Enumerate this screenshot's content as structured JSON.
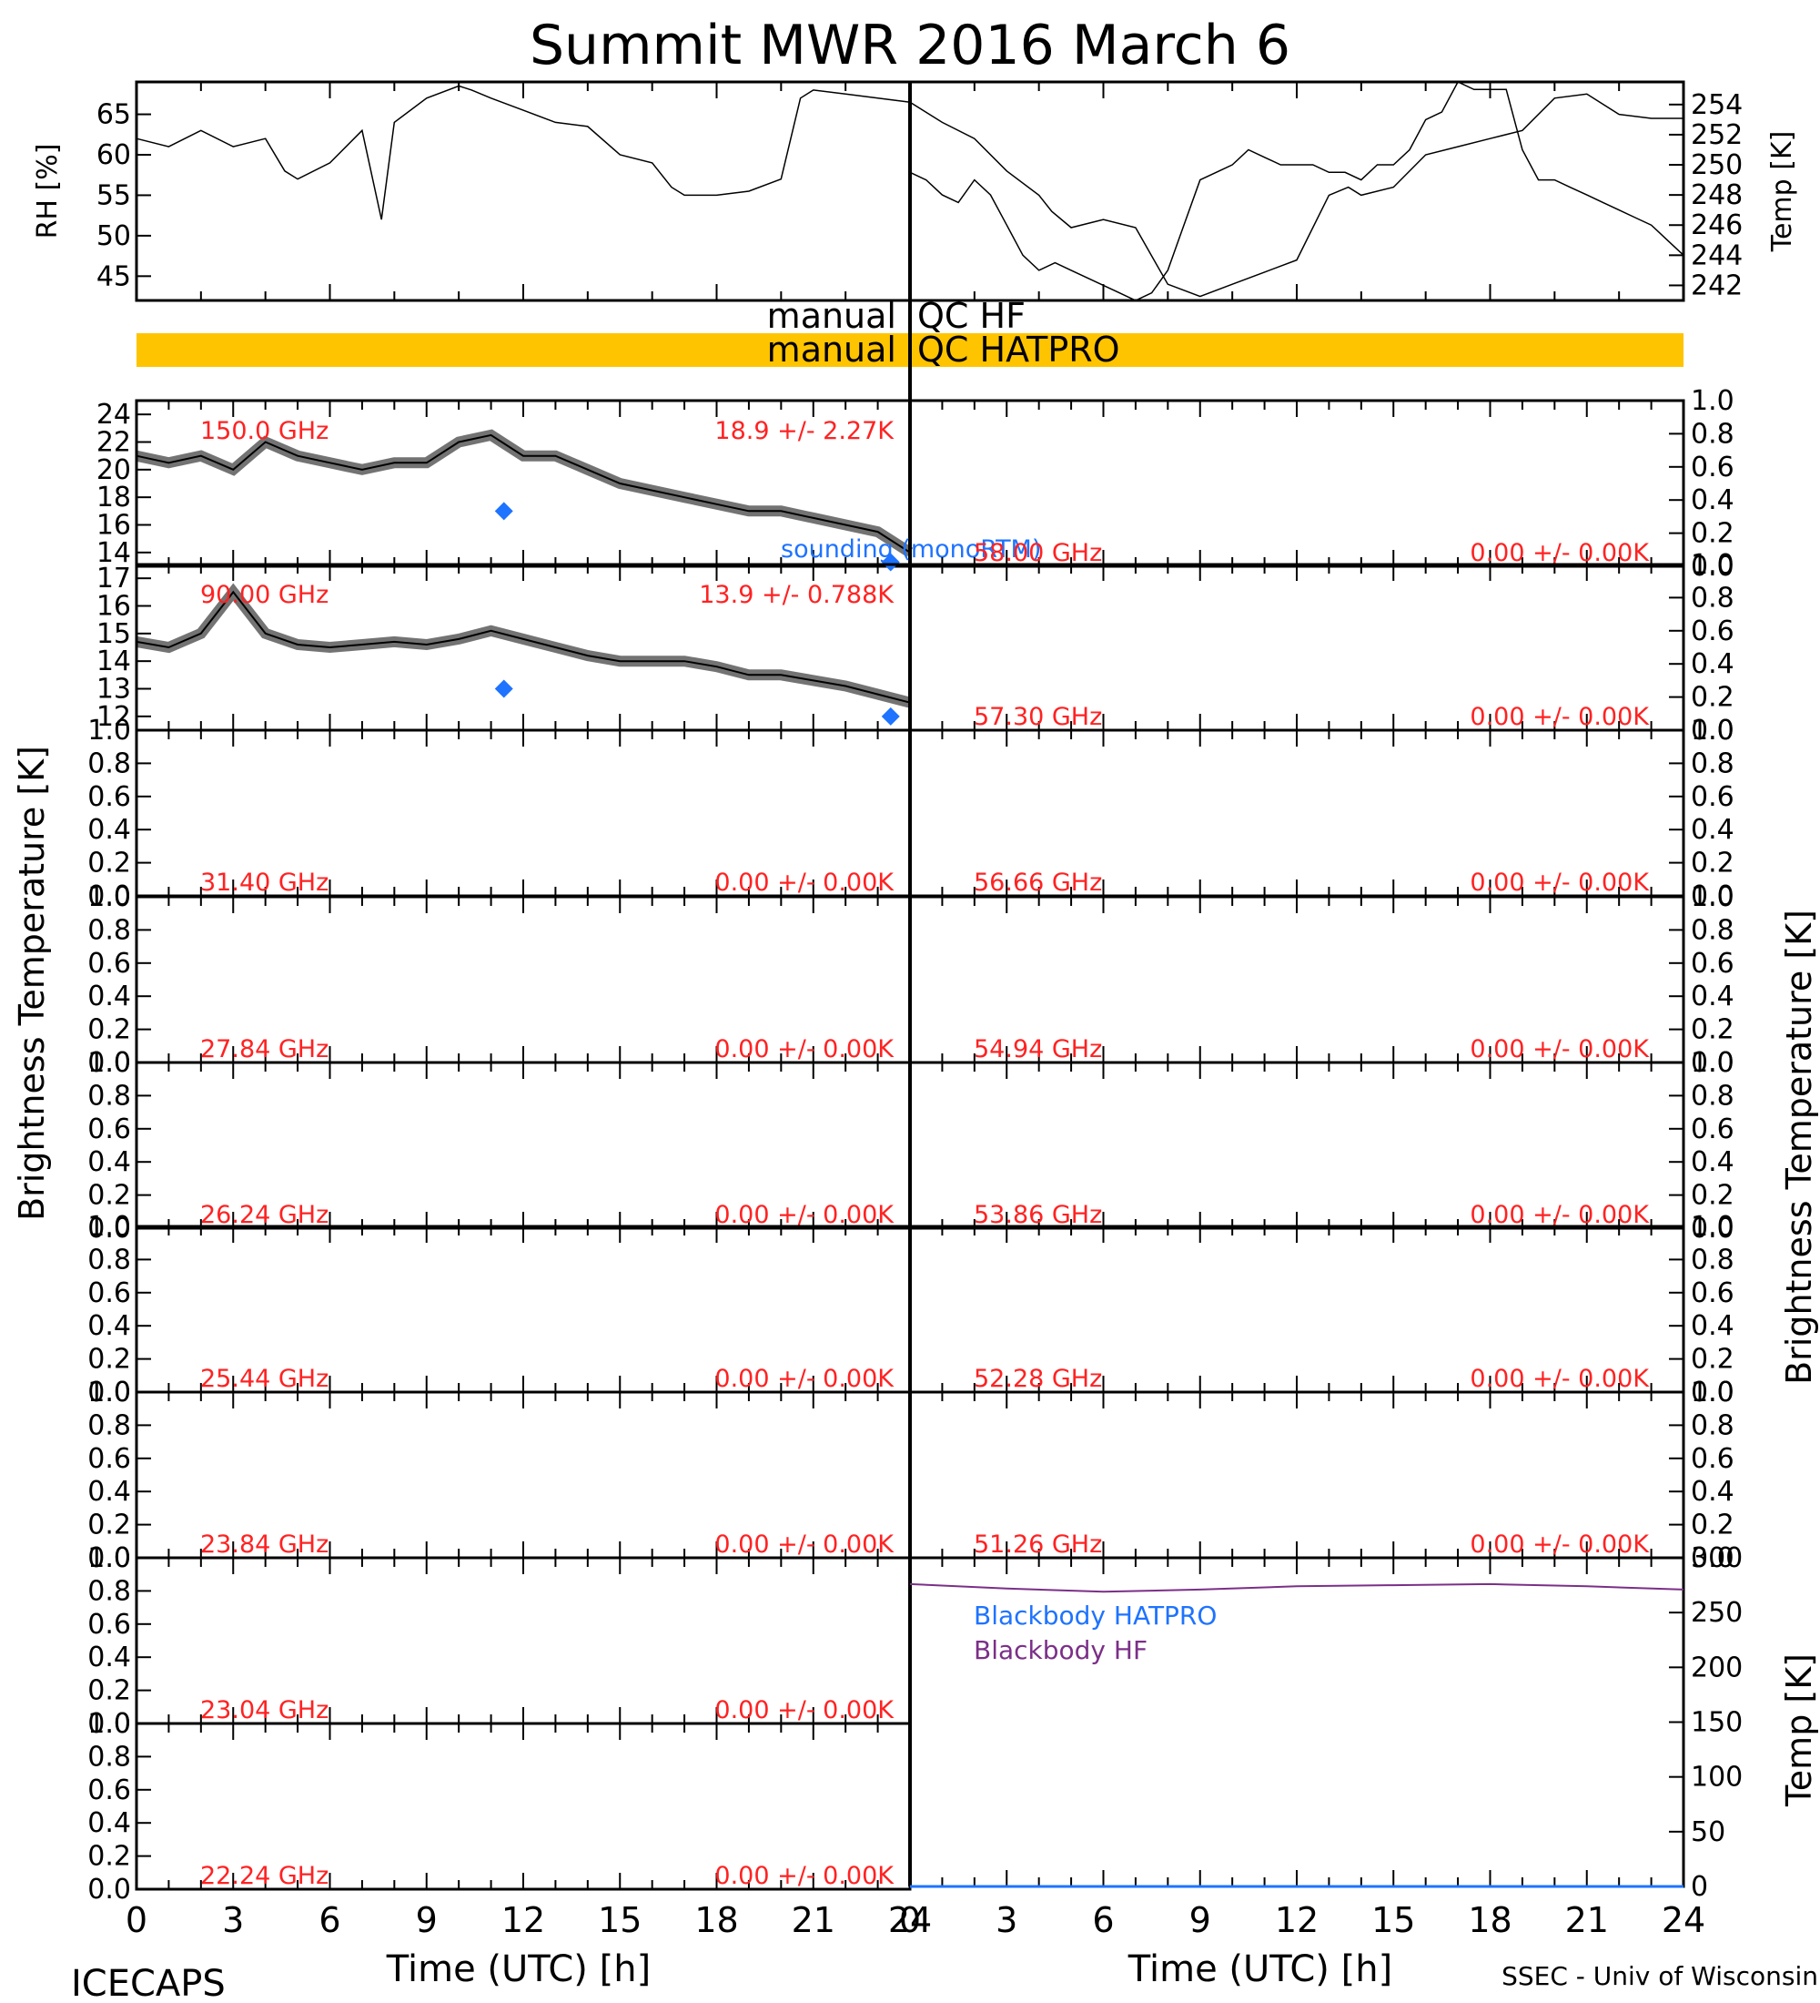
{
  "title": "Summit MWR 2016 March   6",
  "footer": {
    "left": "ICECAPS",
    "right": "SSEC - Univ of Wisconsin",
    "x_title_left": "Time (UTC) [h]",
    "x_title_right": "Time (UTC) [h]"
  },
  "y_titles": {
    "left_big": "Brightness Temperature [K]",
    "right_big": "Brightness Temperature [K]"
  },
  "qc_bars": {
    "hf": {
      "left": "manual",
      "right": "QC HF"
    },
    "hatpro": {
      "left": "manual",
      "right": "QC HATPRO"
    },
    "color": "#ffc400"
  },
  "colors": {
    "data": "#000000",
    "stats_text": "#ff2222",
    "sounding": "#1e73ff",
    "blackbody_hatpro": "#1e73ff",
    "blackbody_hf": "#7b2f88"
  },
  "x_ticks": [
    "0",
    "3",
    "6",
    "9",
    "12",
    "15",
    "18",
    "21",
    "24"
  ],
  "chart_data": [
    {
      "type": "line",
      "ylabel": "RH [%]",
      "xlim": [
        0,
        24
      ],
      "ylim": [
        42,
        69
      ],
      "yticks": [
        "45",
        "50",
        "55",
        "60",
        "65"
      ],
      "series": [
        {
          "x": [
            0,
            0.5,
            1,
            1.5,
            2,
            2.3,
            2.5,
            3,
            3.5,
            3.8,
            4,
            4.5,
            5,
            5.2,
            5.5,
            6,
            6.5,
            7,
            7.5,
            8,
            8.3,
            8.5,
            9,
            9.5,
            10,
            10.3,
            10.5,
            11,
            11.5,
            12,
            12.5,
            13,
            13.5,
            14,
            14.2,
            14.5,
            15,
            15.5,
            16,
            16.5,
            17,
            17.5,
            18,
            18.5,
            18.8,
            19,
            19.5,
            20,
            20.5,
            21,
            21.5,
            22,
            22.5,
            23,
            23.5,
            24
          ],
          "y": [
            62,
            61,
            63,
            61,
            62,
            58,
            57,
            59,
            63,
            52,
            64,
            67,
            68.5,
            68,
            67,
            65.5,
            64,
            63.5,
            60,
            59,
            56,
            55,
            55,
            55.5,
            57,
            67,
            68,
            67.5,
            67,
            66.5,
            64,
            62,
            58,
            55,
            53,
            51,
            52,
            51,
            44,
            42.5,
            44,
            45.5,
            47,
            55,
            56,
            55,
            56,
            60,
            61,
            62,
            63,
            67,
            67.5,
            65,
            64.5,
            64.5
          ]
        }
      ]
    },
    {
      "type": "line",
      "ylabel": "Temp [K]",
      "xlim": [
        0,
        24
      ],
      "ylim": [
        241,
        255.5
      ],
      "yticks": [
        "242",
        "244",
        "246",
        "248",
        "250",
        "252",
        "254"
      ],
      "series": [
        {
          "x": [
            0,
            0.5,
            1,
            1.5,
            2,
            2.5,
            3,
            3.5,
            4,
            4.5,
            5,
            5.5,
            6,
            6.5,
            7,
            7.5,
            8,
            8.5,
            9,
            9.5,
            10,
            10.5,
            11,
            11.5,
            12,
            12.5,
            13,
            13.5,
            14,
            14.5,
            15,
            15.5,
            16,
            16.5,
            17,
            17.5,
            18,
            18.5,
            19,
            19.5,
            20,
            20.5,
            21,
            21.5,
            22,
            22.5,
            23,
            23.5,
            24
          ],
          "y": [
            249.5,
            249,
            248,
            247.5,
            249,
            248,
            246,
            244,
            243,
            243.5,
            243,
            242.5,
            242,
            241.5,
            241,
            241.5,
            243,
            246,
            249,
            249.5,
            250,
            251,
            250.5,
            250,
            250,
            250,
            249.5,
            249.5,
            249,
            250,
            250,
            251,
            253,
            253.5,
            255.5,
            255,
            255,
            255,
            251,
            249,
            249,
            248.5,
            248,
            247.5,
            247,
            246.5,
            246,
            245,
            244
          ]
        }
      ]
    },
    {
      "type": "scatter",
      "ylabel": "",
      "xlim": [
        0,
        12
      ],
      "ylim": [
        13,
        25
      ],
      "yticks": [
        "14",
        "16",
        "18",
        "20",
        "22",
        "24"
      ],
      "text_left": "150.0 GHz",
      "text_right": "18.9 +/-  2.27K",
      "sounding_label": "sounding (monoRTM)",
      "series": [
        {
          "name": "",
          "x": [
            0,
            0.5,
            1,
            1.5,
            2,
            2.5,
            3,
            3.5,
            4,
            4.5,
            5,
            5.5,
            6,
            6.5,
            7,
            7.5,
            8,
            8.5,
            9,
            9.5,
            10,
            10.5,
            11,
            11.5,
            12
          ],
          "y": [
            21,
            20.5,
            21,
            20,
            22,
            21,
            20.5,
            20,
            20.5,
            20.5,
            22,
            22.5,
            21,
            21,
            20,
            19,
            18.5,
            18,
            17.5,
            17,
            17,
            16.5,
            16,
            15.5,
            14
          ]
        },
        {
          "name": "sounding (monoRTM)",
          "x": [
            5.7,
            11.7
          ],
          "y": [
            17.0,
            13.3
          ]
        }
      ]
    },
    {
      "type": "scatter",
      "ylabel": "",
      "xlim": [
        0,
        12
      ],
      "ylim": [
        11.5,
        17.5
      ],
      "yticks": [
        "12",
        "13",
        "14",
        "15",
        "16",
        "17"
      ],
      "text_left": "90.00 GHz",
      "text_right": "13.9 +/- 0.788K",
      "series": [
        {
          "name": "",
          "x": [
            0,
            0.5,
            1,
            1.5,
            2,
            2.5,
            3,
            3.5,
            4,
            4.5,
            5,
            5.5,
            6,
            6.5,
            7,
            7.5,
            8,
            8.5,
            9,
            9.5,
            10,
            10.5,
            11,
            11.5,
            12
          ],
          "y": [
            14.7,
            14.5,
            15,
            16.5,
            15,
            14.6,
            14.5,
            14.6,
            14.7,
            14.6,
            14.8,
            15.1,
            14.8,
            14.5,
            14.2,
            14,
            14,
            14,
            13.8,
            13.5,
            13.5,
            13.3,
            13.1,
            12.8,
            12.5
          ]
        },
        {
          "name": "",
          "x": [
            5.7,
            11.7
          ],
          "y": [
            13.0,
            12.0
          ]
        }
      ]
    }
  ],
  "empty_panels": {
    "left": [
      {
        "freq": "31.40 GHz",
        "stats": "0.00 +/- 0.00K"
      },
      {
        "freq": "27.84 GHz",
        "stats": "0.00 +/- 0.00K"
      },
      {
        "freq": "26.24 GHz",
        "stats": "0.00 +/- 0.00K"
      },
      {
        "freq": "25.44 GHz",
        "stats": "0.00 +/- 0.00K"
      },
      {
        "freq": "23.84 GHz",
        "stats": "0.00 +/- 0.00K"
      },
      {
        "freq": "23.04 GHz",
        "stats": "0.00 +/- 0.00K"
      },
      {
        "freq": "22.24 GHz",
        "stats": "0.00 +/- 0.00K"
      }
    ],
    "right": [
      {
        "freq": "58.00 GHz",
        "stats": "0.00 +/- 0.00K"
      },
      {
        "freq": "57.30 GHz",
        "stats": "0.00 +/- 0.00K"
      },
      {
        "freq": "56.66 GHz",
        "stats": "0.00 +/- 0.00K"
      },
      {
        "freq": "54.94 GHz",
        "stats": "0.00 +/- 0.00K"
      },
      {
        "freq": "53.86 GHz",
        "stats": "0.00 +/- 0.00K"
      },
      {
        "freq": "52.28 GHz",
        "stats": "0.00 +/- 0.00K"
      },
      {
        "freq": "51.26 GHz",
        "stats": "0.00 +/- 0.00K"
      }
    ],
    "yticks": [
      "0.0",
      "0.2",
      "0.4",
      "0.6",
      "0.8",
      "1.0"
    ]
  },
  "blackbody": {
    "ylabel": "Temp [K]",
    "ylim": [
      0,
      300
    ],
    "yticks": [
      "0",
      "50",
      "100",
      "150",
      "200",
      "250",
      "300"
    ],
    "labels": [
      "Blackbody HATPRO",
      "Blackbody HF"
    ],
    "hf": {
      "x": [
        0,
        3,
        6,
        9,
        12,
        15,
        18,
        21,
        24
      ],
      "y": [
        276,
        272,
        269,
        271,
        274,
        275,
        276,
        274,
        271
      ]
    },
    "hatpro": {
      "x": [
        0,
        24
      ],
      "y": [
        0,
        0
      ]
    }
  }
}
